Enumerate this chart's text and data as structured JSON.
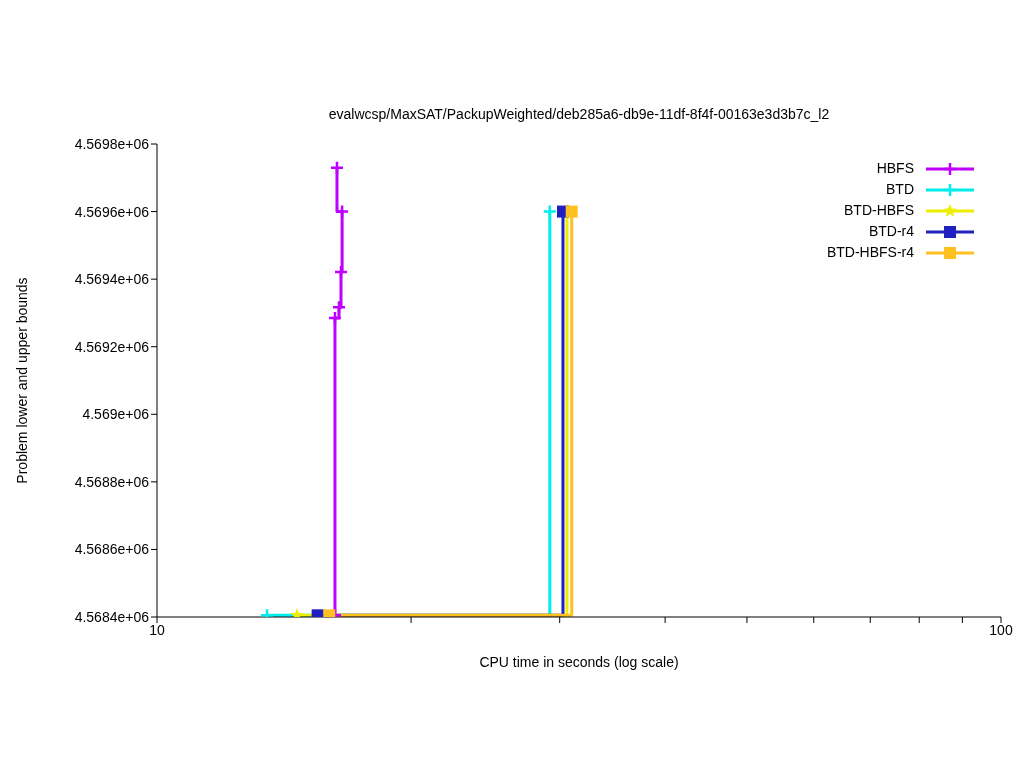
{
  "chart_data": {
    "type": "step",
    "title": "evalwcsp/MaxSAT/PackupWeighted/deb285a6-db9e-11df-8f4f-00163e3d3b7c_l2",
    "xlabel": "CPU time in seconds (log scale)",
    "ylabel": "Problem lower and upper bounds",
    "log": "x",
    "xlim": [
      10,
      100
    ],
    "xticks": [
      10,
      {
        "value": 20,
        "label": null
      },
      {
        "value": 30,
        "label": null
      },
      {
        "value": 40,
        "label": null
      },
      {
        "value": 50,
        "label": null
      },
      {
        "value": 60,
        "label": null
      },
      {
        "value": 70,
        "label": null
      },
      {
        "value": 80,
        "label": null
      },
      {
        "value": 90,
        "label": null
      },
      100
    ],
    "ylim": [
      4568400,
      4569800
    ],
    "yticks": [
      {
        "value": 4568400,
        "label": "4.5684e+06"
      },
      {
        "value": 4568600,
        "label": "4.5686e+06"
      },
      {
        "value": 4568800,
        "label": "4.5688e+06"
      },
      {
        "value": 4569000,
        "label": "4.569e+06"
      },
      {
        "value": 4569200,
        "label": "4.5692e+06"
      },
      {
        "value": 4569400,
        "label": "4.5694e+06"
      },
      {
        "value": 4569600,
        "label": "4.5696e+06"
      },
      {
        "value": 4569800,
        "label": "4.5698e+06"
      }
    ],
    "grid": false,
    "legend": "top right",
    "line_style": "solid",
    "series": [
      {
        "name": "HBFS",
        "color": "#c000ff",
        "marker": "cross",
        "x": [
          16.25,
          16.25,
          16.43,
          16.52,
          16.57,
          16.34
        ],
        "values": [
          4568405,
          4569285,
          4569317,
          4569421,
          4569600,
          4569730
        ]
      },
      {
        "name": "BTD",
        "color": "#00eeee",
        "marker": "cross",
        "x": [
          13.5,
          29.2
        ],
        "values": [
          4568405,
          4569600
        ]
      },
      {
        "name": "BTD-HBFS",
        "color": "#eeee00",
        "marker": "star",
        "x": [
          14.65,
          30.6
        ],
        "values": [
          4568405,
          4569600
        ]
      },
      {
        "name": "BTD-r4",
        "color": "#2020c0",
        "marker": "square",
        "x": [
          15.5,
          30.27
        ],
        "values": [
          4568405,
          4569600
        ]
      },
      {
        "name": "BTD-HBFS-r4",
        "color": "#ffc020",
        "marker": "square",
        "x": [
          16.0,
          31.0
        ],
        "values": [
          4568405,
          4569600
        ]
      }
    ]
  }
}
